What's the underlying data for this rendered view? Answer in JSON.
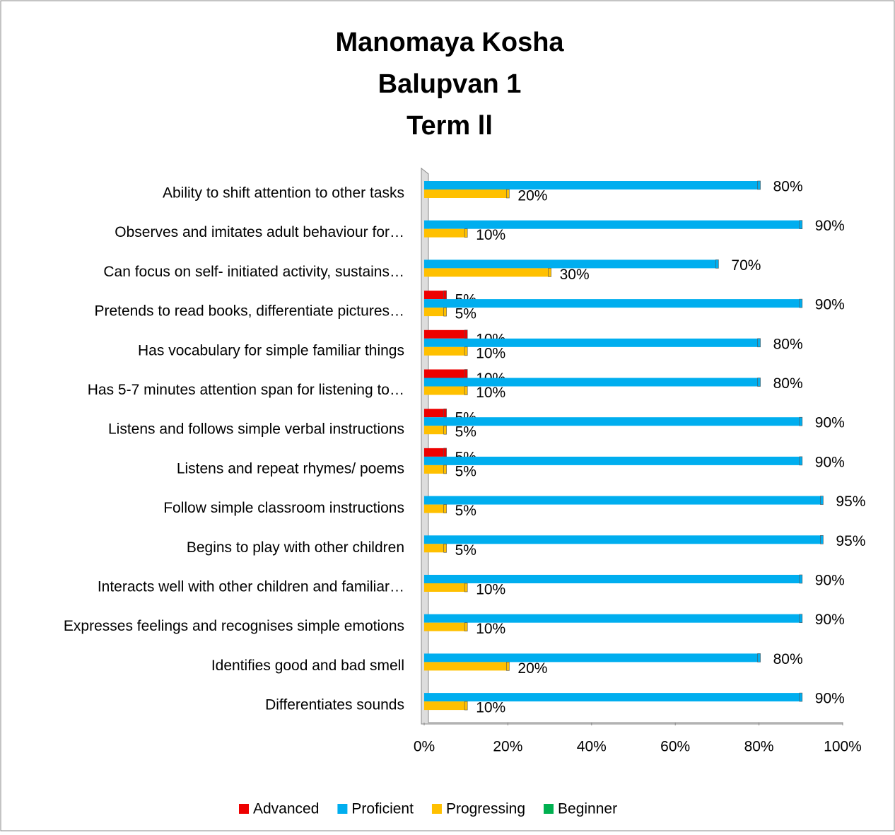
{
  "chart_data": {
    "type": "bar",
    "orientation": "horizontal",
    "title": [
      "Manomaya Kosha",
      "Balupvan 1",
      "Term ll"
    ],
    "categories": [
      "Ability to shift attention to other tasks",
      "Observes and imitates adult behaviour for…",
      "Can focus on self- initiated activity, sustains…",
      "Pretends to read books, differentiate pictures…",
      "Has vocabulary for simple familiar things",
      "Has 5-7 minutes attention span for listening to…",
      "Listens and follows simple verbal instructions",
      "Listens and repeat rhymes/ poems",
      "Follow simple classroom instructions",
      "Begins to play with other children",
      "Interacts well with other children and familiar…",
      "Expresses feelings and recognises simple emotions",
      "Identifies good and bad smell",
      "Differentiates sounds"
    ],
    "series": [
      {
        "name": "Advanced",
        "color": "#ee0000",
        "values": [
          null,
          null,
          null,
          5,
          10,
          10,
          5,
          5,
          null,
          null,
          null,
          null,
          null,
          null
        ],
        "value_labels": [
          null,
          null,
          null,
          "5%",
          "10%",
          "10%",
          "5%",
          "5%",
          null,
          null,
          null,
          null,
          null,
          null
        ]
      },
      {
        "name": "Proficient",
        "color": "#00aeef",
        "values": [
          80,
          90,
          70,
          90,
          80,
          80,
          90,
          90,
          95,
          95,
          90,
          90,
          80,
          90
        ],
        "value_labels": [
          "80%",
          "90%",
          "70%",
          "90%",
          "80%",
          "80%",
          "90%",
          "90%",
          "95%",
          "95%",
          "90%",
          "90%",
          "80%",
          "90%"
        ]
      },
      {
        "name": "Progressing",
        "color": "#ffc000",
        "values": [
          20,
          10,
          30,
          5,
          10,
          10,
          5,
          5,
          5,
          5,
          10,
          10,
          20,
          10
        ],
        "value_labels": [
          "20%",
          "10%",
          "30%",
          "5%",
          "10%",
          "10%",
          "5%",
          "5%",
          "5%",
          "5%",
          "10%",
          "10%",
          "20%",
          "10%"
        ]
      },
      {
        "name": "Beginner",
        "color": "#00b050",
        "values": [
          null,
          null,
          null,
          null,
          null,
          null,
          null,
          null,
          null,
          null,
          null,
          null,
          null,
          null
        ]
      }
    ],
    "xlim": [
      0,
      100
    ],
    "xticks": [
      {
        "value": 0,
        "label": "0%"
      },
      {
        "value": 20,
        "label": "20%"
      },
      {
        "value": 40,
        "label": "40%"
      },
      {
        "value": 60,
        "label": "60%"
      },
      {
        "value": 80,
        "label": "80%"
      },
      {
        "value": 100,
        "label": "100%"
      }
    ],
    "legend": "bottom"
  }
}
